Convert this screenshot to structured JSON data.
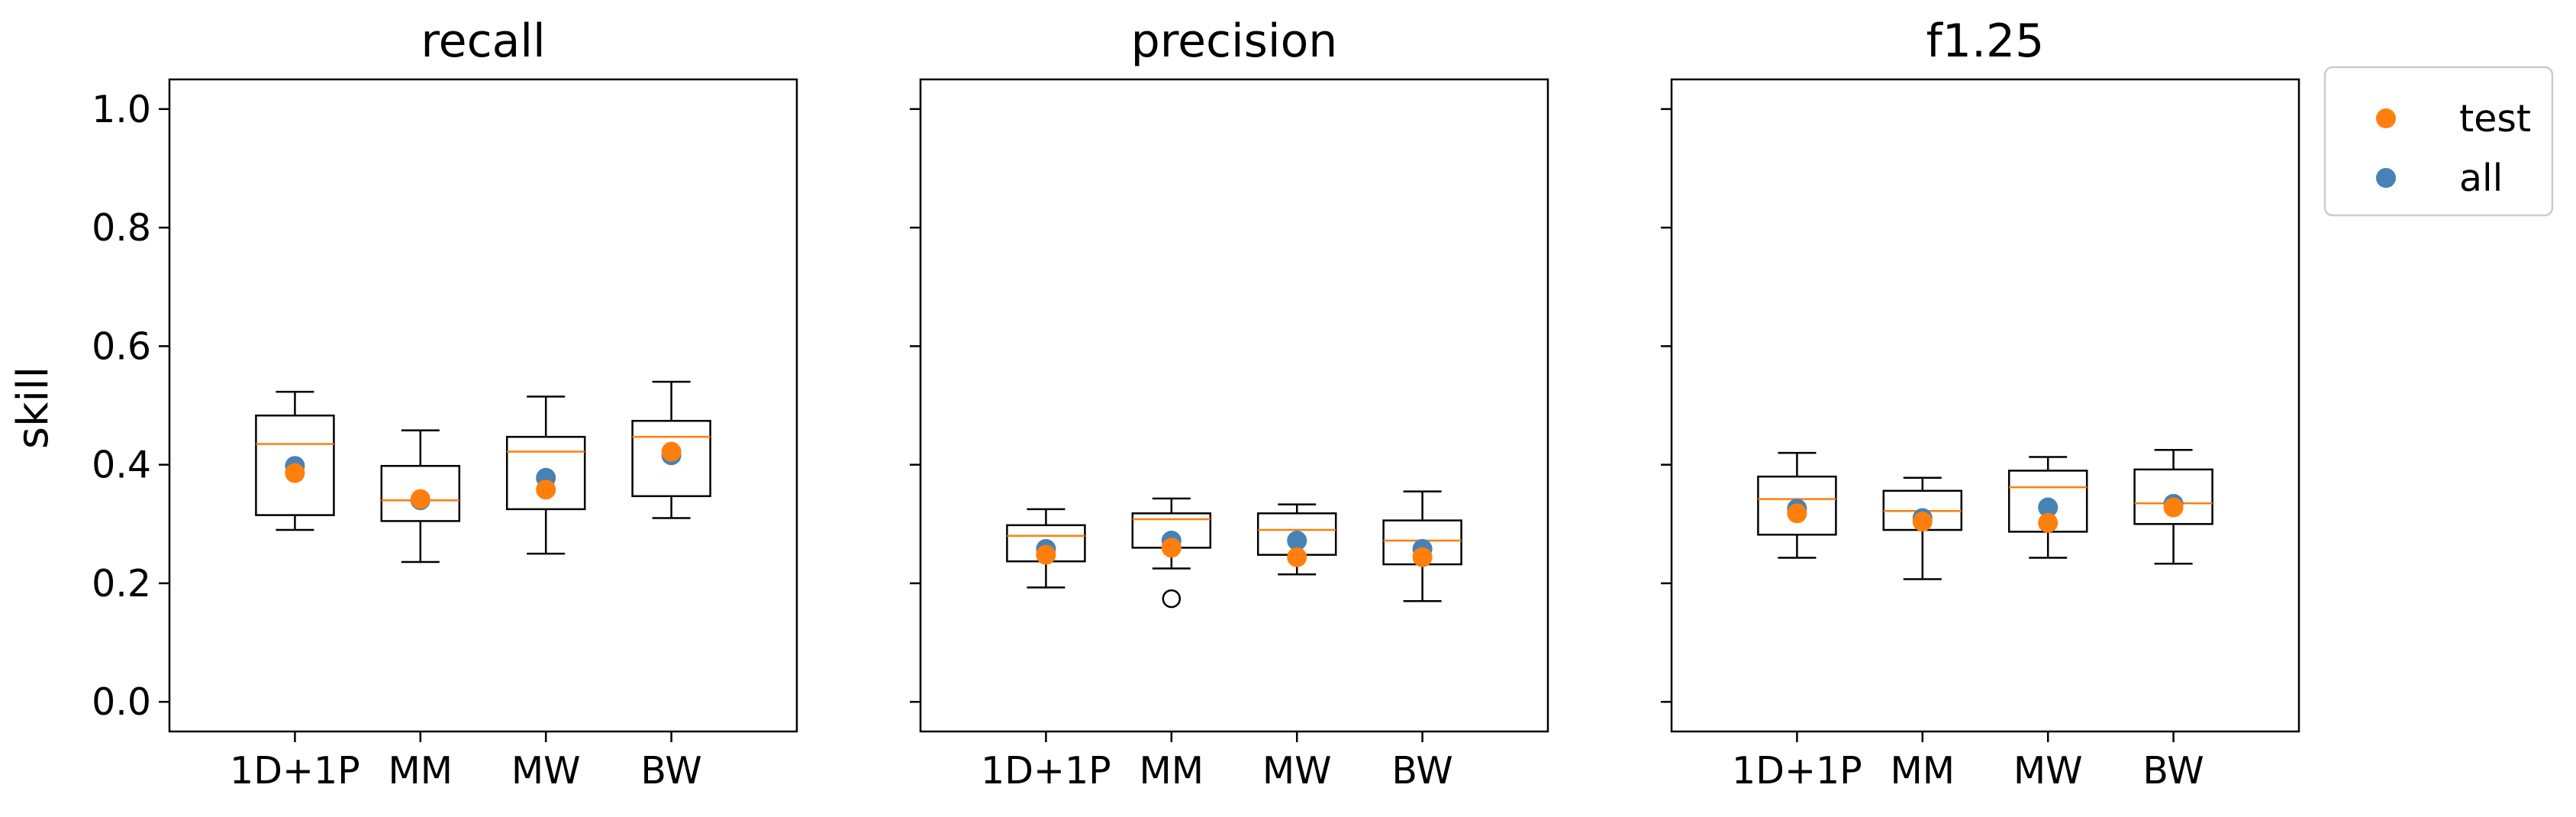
{
  "chart_data": {
    "type": "box",
    "ylabel": "skill",
    "ylim": [
      -0.05,
      1.05
    ],
    "yticks": [
      0.0,
      0.2,
      0.4,
      0.6,
      0.8,
      1.0
    ],
    "ytick_labels": [
      "0.0",
      "0.2",
      "0.4",
      "0.6",
      "0.8",
      "1.0"
    ],
    "categories": [
      "1D+1P",
      "MM",
      "MW",
      "BW"
    ],
    "legend": {
      "position": "outside-top-right",
      "entries": [
        {
          "key": "test",
          "label": "test",
          "color": "#ff7f0e"
        },
        {
          "key": "all",
          "label": "all",
          "color": "#4682b4"
        }
      ]
    },
    "colors": {
      "median": "#ff7f0e",
      "box": "#000000"
    },
    "panels": [
      {
        "title": "recall",
        "boxes": [
          {
            "whislo": 0.29,
            "q1": 0.315,
            "med": 0.435,
            "q3": 0.483,
            "whishi": 0.523,
            "fliers": []
          },
          {
            "whislo": 0.236,
            "q1": 0.305,
            "med": 0.34,
            "q3": 0.398,
            "whishi": 0.458,
            "fliers": []
          },
          {
            "whislo": 0.25,
            "q1": 0.325,
            "med": 0.422,
            "q3": 0.447,
            "whishi": 0.515,
            "fliers": []
          },
          {
            "whislo": 0.31,
            "q1": 0.347,
            "med": 0.447,
            "q3": 0.474,
            "whishi": 0.54,
            "fliers": []
          }
        ],
        "all": [
          0.398,
          0.34,
          0.378,
          0.416
        ],
        "test": [
          0.386,
          0.342,
          0.358,
          0.422
        ]
      },
      {
        "title": "precision",
        "boxes": [
          {
            "whislo": 0.193,
            "q1": 0.237,
            "med": 0.28,
            "q3": 0.298,
            "whishi": 0.325,
            "fliers": []
          },
          {
            "whislo": 0.225,
            "q1": 0.26,
            "med": 0.308,
            "q3": 0.318,
            "whishi": 0.343,
            "fliers": [
              0.174
            ]
          },
          {
            "whislo": 0.215,
            "q1": 0.248,
            "med": 0.29,
            "q3": 0.318,
            "whishi": 0.333,
            "fliers": []
          },
          {
            "whislo": 0.17,
            "q1": 0.232,
            "med": 0.272,
            "q3": 0.306,
            "whishi": 0.355,
            "fliers": []
          }
        ],
        "all": [
          0.258,
          0.272,
          0.272,
          0.258
        ],
        "test": [
          0.248,
          0.26,
          0.244,
          0.244
        ]
      },
      {
        "title": "f1.25",
        "boxes": [
          {
            "whislo": 0.243,
            "q1": 0.282,
            "med": 0.342,
            "q3": 0.38,
            "whishi": 0.42,
            "fliers": []
          },
          {
            "whislo": 0.207,
            "q1": 0.29,
            "med": 0.322,
            "q3": 0.356,
            "whishi": 0.378,
            "fliers": []
          },
          {
            "whislo": 0.243,
            "q1": 0.287,
            "med": 0.362,
            "q3": 0.39,
            "whishi": 0.413,
            "fliers": []
          },
          {
            "whislo": 0.233,
            "q1": 0.3,
            "med": 0.335,
            "q3": 0.392,
            "whishi": 0.425,
            "fliers": []
          }
        ],
        "all": [
          0.326,
          0.31,
          0.328,
          0.334
        ],
        "test": [
          0.318,
          0.304,
          0.302,
          0.328
        ]
      }
    ]
  }
}
